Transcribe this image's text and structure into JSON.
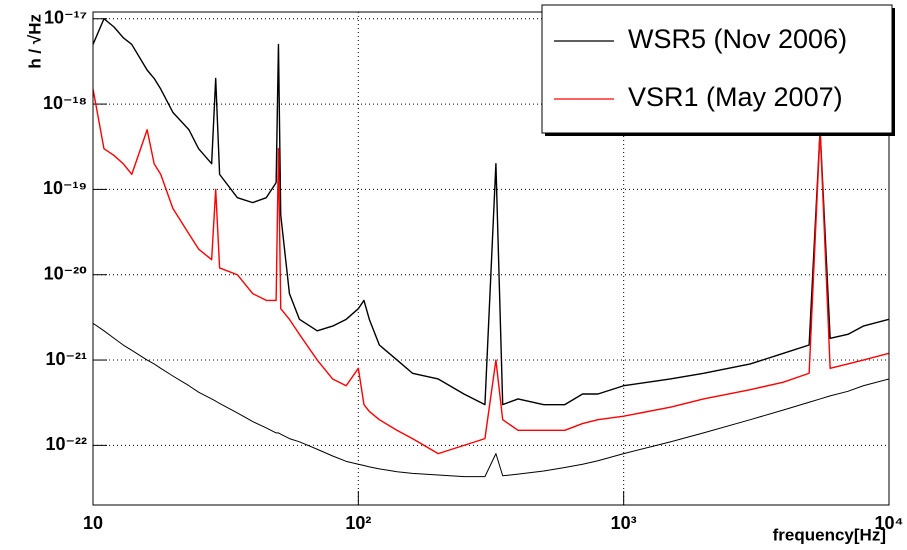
{
  "chart_data": {
    "type": "line",
    "xlabel": "frequency[Hz]",
    "ylabel": "h / √Hz",
    "log_x": true,
    "log_y": true,
    "grid": true,
    "legend": "upper right",
    "xlim": [
      10,
      10000
    ],
    "ylim": [
      2e-23,
      1.2e-17
    ],
    "xticks": [
      10,
      {
        "value": 100,
        "label": "10²"
      },
      {
        "value": 1000,
        "label": "10³"
      },
      {
        "value": 10000,
        "label": "10⁴"
      }
    ],
    "yticks": [
      {
        "value": 1e-22,
        "label": "10⁻²²"
      },
      {
        "value": 1e-21,
        "label": "10⁻²¹"
      },
      {
        "value": 1e-20,
        "label": "10⁻²⁰"
      },
      {
        "value": 1e-19,
        "label": "10⁻¹⁹"
      },
      {
        "value": 1e-18,
        "label": "10⁻¹⁸"
      },
      {
        "value": 1e-17,
        "label": "10⁻¹⁷"
      }
    ],
    "x": [
      10,
      11,
      12,
      13,
      14,
      16,
      17,
      18,
      20,
      23,
      25,
      28,
      29,
      30,
      35,
      40,
      45,
      49,
      50,
      51,
      55,
      60,
      70,
      80,
      90,
      100,
      105,
      110,
      120,
      140,
      160,
      200,
      250,
      300,
      330,
      350,
      400,
      500,
      600,
      700,
      800,
      1000,
      1500,
      2000,
      3000,
      4000,
      5000,
      5500,
      6000,
      7000,
      8000,
      10000
    ],
    "series": [
      {
        "name": "WSR5 (Nov 2006)",
        "color": "#000000",
        "width": 1.4,
        "values": [
          5e-18,
          1e-17,
          8e-18,
          6e-18,
          5e-18,
          2.5e-18,
          2e-18,
          1.5e-18,
          8e-19,
          5e-19,
          3e-19,
          2e-19,
          2e-18,
          1.5e-19,
          8e-20,
          7e-20,
          8e-20,
          1.2e-19,
          5e-18,
          5e-20,
          6e-21,
          3e-21,
          2.2e-21,
          2.5e-21,
          3e-21,
          4e-21,
          5e-21,
          3e-21,
          1.5e-21,
          1e-21,
          7e-22,
          6e-22,
          4e-22,
          3e-22,
          2e-19,
          3e-22,
          3.5e-22,
          3e-22,
          3e-22,
          4e-22,
          4e-22,
          5e-22,
          6e-22,
          7e-22,
          9e-22,
          1.2e-21,
          1.5e-21,
          5e-19,
          1.8e-21,
          2e-21,
          2.5e-21,
          3e-21
        ]
      },
      {
        "name": "VSR1 (May 2007)",
        "color": "#ff0000",
        "width": 1.4,
        "values": [
          1.5e-18,
          3e-19,
          2.5e-19,
          2e-19,
          1.5e-19,
          5e-19,
          2e-19,
          1.5e-19,
          6e-20,
          3e-20,
          2e-20,
          1.5e-20,
          1e-19,
          1.2e-20,
          1e-20,
          6e-21,
          5e-21,
          5e-21,
          3e-19,
          4e-21,
          3e-21,
          2e-21,
          1e-21,
          6e-22,
          5e-22,
          8e-22,
          3e-22,
          2.5e-22,
          2e-22,
          1.5e-22,
          1.2e-22,
          8e-23,
          1e-22,
          1.2e-22,
          1e-21,
          2e-22,
          1.5e-22,
          1.5e-22,
          1.5e-22,
          1.8e-22,
          2e-22,
          2.2e-22,
          2.8e-22,
          3.5e-22,
          4.5e-22,
          5.5e-22,
          7e-22,
          5e-19,
          8e-22,
          9e-22,
          1e-21,
          1.2e-21
        ]
      },
      {
        "color": "#000000",
        "width": 1,
        "values": [
          2.7e-21,
          2.2e-21,
          1.8e-21,
          1.5e-21,
          1.3e-21,
          1e-21,
          9e-22,
          8e-22,
          6.5e-22,
          5e-22,
          4.2e-22,
          3.5e-22,
          3.3e-22,
          3.1e-22,
          2.4e-22,
          1.9e-22,
          1.6e-22,
          1.4e-22,
          1.4e-22,
          1.35e-22,
          1.2e-22,
          1.1e-22,
          9e-23,
          7.5e-23,
          6.5e-23,
          6e-23,
          5.8e-23,
          5.6e-23,
          5.3e-23,
          4.9e-23,
          4.7e-23,
          4.5e-23,
          4.3e-23,
          4.3e-23,
          8e-23,
          4.4e-23,
          4.6e-23,
          5e-23,
          5.5e-23,
          6e-23,
          6.6e-23,
          8e-23,
          1.1e-22,
          1.4e-22,
          2e-22,
          2.6e-22,
          3.2e-22,
          3.5e-22,
          3.8e-22,
          4.3e-22,
          5e-22,
          6e-22
        ]
      }
    ]
  }
}
